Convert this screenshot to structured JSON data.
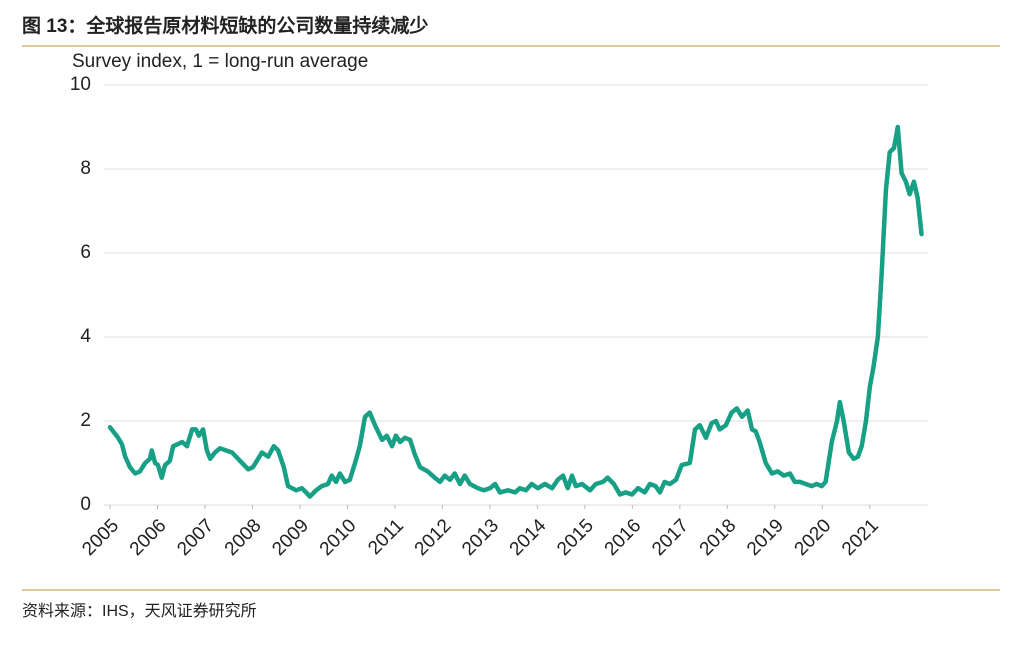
{
  "chart_data": {
    "type": "line",
    "title": "图 13：全球报告原材料短缺的公司数量持续减少",
    "subtitle": "Survey index, 1 = long-run average",
    "source": "资料来源：IHS，天风证券研究所",
    "color": "#17a085",
    "grid": true,
    "xlim": [
      2005,
      2022.1
    ],
    "xticks": [
      2005,
      2006,
      2007,
      2008,
      2009,
      2010,
      2011,
      2012,
      2013,
      2014,
      2015,
      2016,
      2017,
      2018,
      2019,
      2020,
      2021
    ],
    "ylim": [
      0,
      10
    ],
    "yticks": [
      0,
      2,
      4,
      6,
      8,
      10
    ],
    "x": [
      2005.0,
      2005.17,
      2005.25,
      2005.32,
      2005.42,
      2005.53,
      2005.63,
      2005.74,
      2005.84,
      2005.88,
      2005.95,
      2006.01,
      2006.09,
      2006.16,
      2006.26,
      2006.33,
      2006.43,
      2006.52,
      2006.62,
      2006.73,
      2006.81,
      2006.87,
      2006.96,
      2007.04,
      2007.11,
      2007.21,
      2007.32,
      2007.44,
      2007.57,
      2007.74,
      2007.91,
      2008.01,
      2008.2,
      2008.33,
      2008.45,
      2008.54,
      2008.66,
      2008.75,
      2008.92,
      2009.04,
      2009.13,
      2009.21,
      2009.34,
      2009.46,
      2009.59,
      2009.67,
      2009.76,
      2009.84,
      2009.95,
      2010.05,
      2010.16,
      2010.26,
      2010.37,
      2010.47,
      2010.58,
      2010.73,
      2010.83,
      2010.94,
      2011.02,
      2011.11,
      2011.21,
      2011.32,
      2011.42,
      2011.53,
      2011.69,
      2011.84,
      2011.95,
      2012.05,
      2012.16,
      2012.26,
      2012.37,
      2012.47,
      2012.58,
      2012.75,
      2012.87,
      2013.0,
      2013.11,
      2013.21,
      2013.38,
      2013.53,
      2013.63,
      2013.76,
      2013.88,
      2014.01,
      2014.16,
      2014.31,
      2014.43,
      2014.54,
      2014.64,
      2014.73,
      2014.81,
      2014.94,
      2015.11,
      2015.23,
      2015.38,
      2015.48,
      2015.61,
      2015.74,
      2015.86,
      2015.99,
      2016.12,
      2016.26,
      2016.37,
      2016.49,
      2016.58,
      2016.68,
      2016.79,
      2016.92,
      2017.04,
      2017.21,
      2017.32,
      2017.42,
      2017.55,
      2017.67,
      2017.76,
      2017.84,
      2017.97,
      2018.09,
      2018.2,
      2018.31,
      2018.43,
      2018.52,
      2018.6,
      2018.68,
      2018.81,
      2018.94,
      2019.06,
      2019.19,
      2019.32,
      2019.42,
      2019.53,
      2019.65,
      2019.78,
      2019.88,
      2019.99,
      2020.07,
      2020.2,
      2020.31,
      2020.37,
      2020.45,
      2020.56,
      2020.66,
      2020.75,
      2020.83,
      2020.92,
      2021.0,
      2021.08,
      2021.17,
      2021.25,
      2021.34,
      2021.42,
      2021.51,
      2021.59,
      2021.67,
      2021.76,
      2021.84,
      2021.93,
      2022.01,
      2022.09
    ],
    "values": [
      1.85,
      1.6,
      1.45,
      1.15,
      0.9,
      0.75,
      0.8,
      1.0,
      1.1,
      1.3,
      1.0,
      0.95,
      0.65,
      0.95,
      1.05,
      1.4,
      1.45,
      1.5,
      1.4,
      1.8,
      1.8,
      1.65,
      1.8,
      1.3,
      1.1,
      1.25,
      1.35,
      1.3,
      1.25,
      1.05,
      0.85,
      0.9,
      1.25,
      1.15,
      1.4,
      1.3,
      0.9,
      0.45,
      0.35,
      0.4,
      0.3,
      0.2,
      0.35,
      0.45,
      0.5,
      0.7,
      0.55,
      0.75,
      0.55,
      0.6,
      1.0,
      1.4,
      2.1,
      2.2,
      1.9,
      1.55,
      1.65,
      1.4,
      1.65,
      1.5,
      1.6,
      1.55,
      1.2,
      0.9,
      0.8,
      0.65,
      0.55,
      0.7,
      0.6,
      0.75,
      0.5,
      0.7,
      0.5,
      0.4,
      0.35,
      0.4,
      0.5,
      0.3,
      0.35,
      0.3,
      0.4,
      0.35,
      0.5,
      0.4,
      0.5,
      0.4,
      0.6,
      0.7,
      0.4,
      0.7,
      0.45,
      0.5,
      0.35,
      0.5,
      0.55,
      0.65,
      0.5,
      0.25,
      0.3,
      0.25,
      0.4,
      0.3,
      0.5,
      0.45,
      0.3,
      0.55,
      0.5,
      0.6,
      0.95,
      1.0,
      1.8,
      1.9,
      1.6,
      1.95,
      2.0,
      1.8,
      1.9,
      2.2,
      2.3,
      2.1,
      2.25,
      1.8,
      1.75,
      1.5,
      1.0,
      0.75,
      0.8,
      0.7,
      0.75,
      0.55,
      0.55,
      0.5,
      0.45,
      0.5,
      0.45,
      0.55,
      1.5,
      2.0,
      2.45,
      2.0,
      1.25,
      1.1,
      1.15,
      1.4,
      2.0,
      2.8,
      3.3,
      4.0,
      5.5,
      7.5,
      8.4,
      8.5,
      9.0,
      7.9,
      7.7,
      7.4,
      7.7,
      7.3,
      6.45
    ]
  }
}
